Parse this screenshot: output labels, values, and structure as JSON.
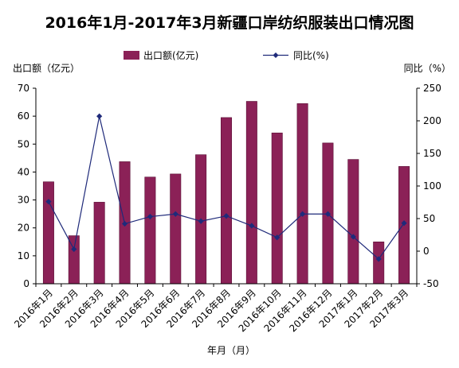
{
  "chart_data": {
    "type": "bar",
    "title": "2016年1月-2017年3月新疆口岸纺织服装出口情况图",
    "xlabel": "年月（月）",
    "ylabel": "出口额（亿元）",
    "y2label": "同比（%）",
    "categories": [
      "2016年1月",
      "2016年2月",
      "2016年3月",
      "2016年4月",
      "2016年5月",
      "2016年6月",
      "2016年7月",
      "2016年8月",
      "2016年9月",
      "2016年10月",
      "2016年11月",
      "2016年12月",
      "2017年1月",
      "2017年2月",
      "2017年3月"
    ],
    "series": [
      {
        "name": "出口额(亿元)",
        "type": "bar",
        "axis": "left",
        "color": "#8B2157",
        "values": [
          36.5,
          17.2,
          29.2,
          43.7,
          38.2,
          39.3,
          46.2,
          59.5,
          65.3,
          54.0,
          64.5,
          50.4,
          44.5,
          15.0,
          42.0
        ]
      },
      {
        "name": "同比(%)",
        "type": "line",
        "axis": "right",
        "color": "#1F2A7A",
        "values": [
          76,
          3,
          207,
          42,
          53,
          57,
          46,
          54,
          39,
          21,
          57,
          57,
          22,
          -12,
          43
        ]
      }
    ],
    "ylim": [
      0,
      70
    ],
    "yticks": [
      0,
      10,
      20,
      30,
      40,
      50,
      60,
      70
    ],
    "y2lim": [
      -50,
      250
    ],
    "y2ticks": [
      -50,
      0,
      50,
      100,
      150,
      200,
      250
    ],
    "legend_position": "top",
    "grid": false
  }
}
